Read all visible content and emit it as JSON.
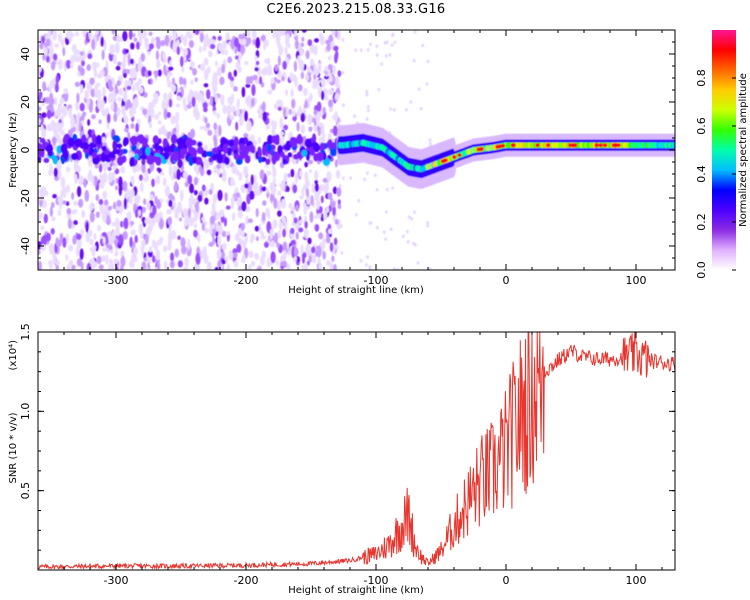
{
  "title": "C2E6.2023.215.08.33.G16",
  "chart_data": [
    {
      "type": "heatmap",
      "xlabel": "Height of straight line (km)",
      "ylabel": "Frequency (Hz)",
      "xlim": [
        -360,
        130
      ],
      "ylim": [
        -50,
        50
      ],
      "xticks": [
        -300,
        -200,
        -100,
        0,
        100
      ],
      "yticks": [
        -40,
        -20,
        0,
        20,
        40
      ],
      "xtick_labels": [
        "-300",
        "-200",
        "-100",
        "0",
        "100"
      ],
      "ytick_labels": [
        "-40",
        "-20",
        "0",
        "20",
        "40"
      ],
      "colorbar": {
        "label": "Normalized spectral amplitude",
        "range": [
          0.0,
          1.0
        ],
        "ticks": [
          "0.0",
          "0.2",
          "0.4",
          "0.6",
          "0.8"
        ],
        "colors": [
          "#ffffff",
          "#e0b0ff",
          "#8a2be2",
          "#4b00ff",
          "#0000ff",
          "#00bfff",
          "#00ffaa",
          "#33ff00",
          "#ccff00",
          "#ffcc00",
          "#ff6600",
          "#ff0000",
          "#ff1493"
        ]
      },
      "signal_track": [
        [
          -125,
          2
        ],
        [
          -110,
          3
        ],
        [
          -95,
          1
        ],
        [
          -85,
          -3
        ],
        [
          -75,
          -7
        ],
        [
          -65,
          -8
        ],
        [
          -55,
          -6
        ],
        [
          -45,
          -4
        ],
        [
          -35,
          -2
        ],
        [
          -25,
          0
        ],
        [
          -10,
          1
        ],
        [
          0,
          2
        ],
        [
          20,
          2
        ],
        [
          50,
          2
        ],
        [
          80,
          2
        ],
        [
          100,
          2
        ],
        [
          130,
          2
        ]
      ],
      "grid": false
    },
    {
      "type": "line",
      "xlabel": "Height of straight line (km)",
      "ylabel": "SNR (10 * v/v)",
      "y_multiplier_label": "(x10⁴)",
      "xlim": [
        -360,
        130
      ],
      "ylim": [
        0,
        15000
      ],
      "xticks": [
        -300,
        -200,
        -100,
        0,
        100
      ],
      "yticks": [
        5000,
        10000,
        15000
      ],
      "xtick_labels": [
        "-300",
        "-200",
        "-100",
        "0",
        "100"
      ],
      "ytick_labels": [
        "0.5",
        "1.0",
        "1.5"
      ],
      "series": [
        {
          "color": "#e8352e",
          "x": [
            -360,
            -300,
            -250,
            -200,
            -150,
            -120,
            -100,
            -90,
            -80,
            -75,
            -70,
            -65,
            -60,
            -50,
            -40,
            -30,
            -20,
            -10,
            0,
            10,
            20,
            30,
            40,
            50,
            60,
            70,
            80,
            90,
            100,
            110,
            120,
            130
          ],
          "y": [
            200,
            250,
            250,
            300,
            400,
            600,
            1000,
            1600,
            2800,
            3500,
            1600,
            800,
            400,
            1200,
            2800,
            4200,
            5500,
            6200,
            7500,
            9500,
            11200,
            12500,
            13200,
            13800,
            13400,
            13300,
            13300,
            13400,
            13600,
            13200,
            13100,
            13000
          ]
        }
      ],
      "grid": false
    }
  ]
}
